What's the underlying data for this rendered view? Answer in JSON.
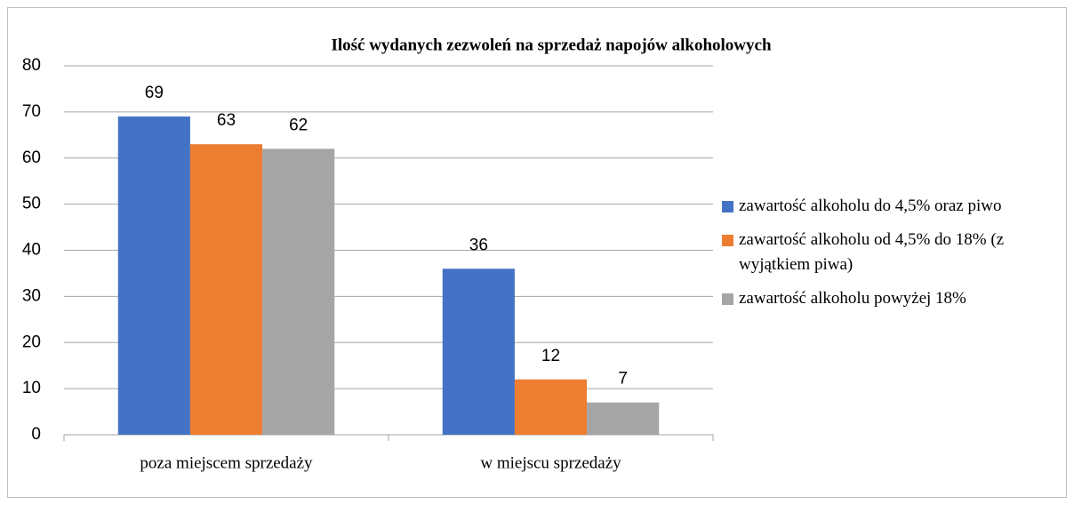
{
  "chart_data": {
    "type": "bar",
    "title": "Ilość wydanych zezwoleń na sprzedaż napojów alkoholowych",
    "categories": [
      "poza miejscem sprzedaży",
      "w miejscu sprzedaży"
    ],
    "series": [
      {
        "name": "zawartość alkoholu do 4,5% oraz piwo",
        "color": "#4472c4",
        "values": [
          69,
          36
        ]
      },
      {
        "name": "zawartość alkoholu od 4,5% do 18% (z wyjątkiem piwa)",
        "color": "#ed7d31",
        "values": [
          63,
          12
        ]
      },
      {
        "name": "zawartość alkoholu powyżej 18%",
        "color": "#a5a5a5",
        "values": [
          62,
          7
        ]
      }
    ],
    "ylim": [
      0,
      80
    ],
    "yticks": [
      0,
      10,
      20,
      30,
      40,
      50,
      60,
      70,
      80
    ],
    "grid": true,
    "legend": "right"
  }
}
